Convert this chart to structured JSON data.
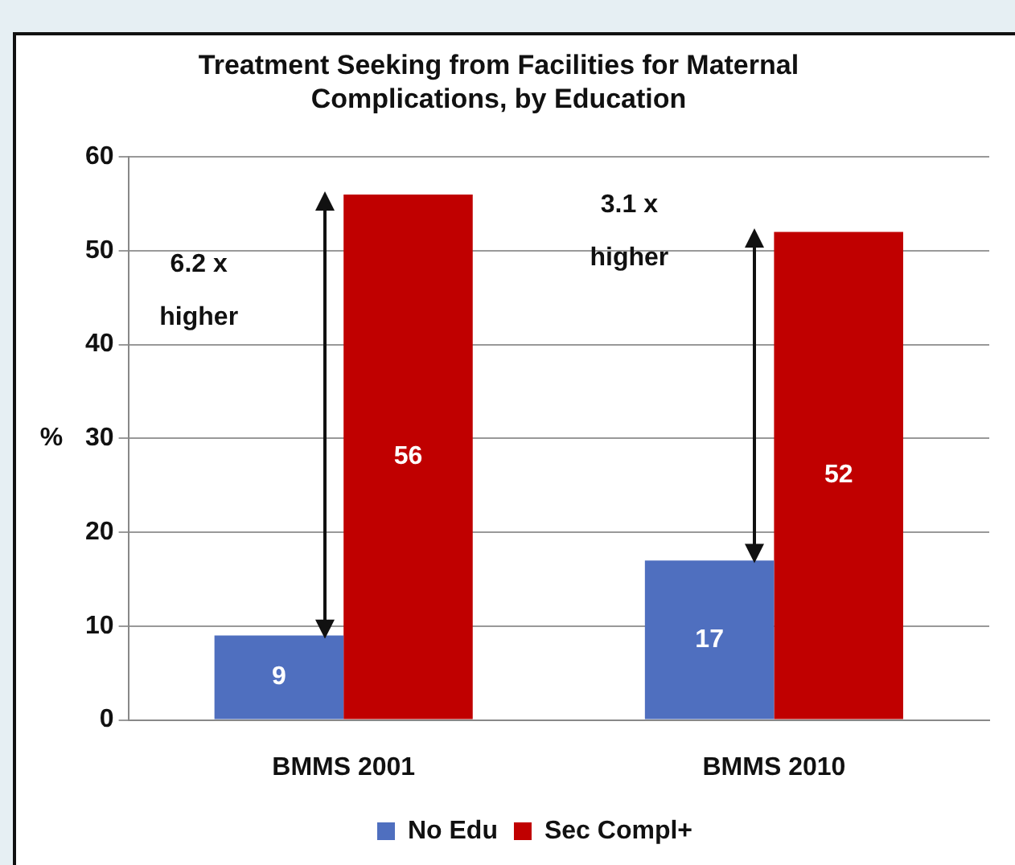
{
  "chart_data": {
    "type": "bar",
    "title": "Treatment Seeking from Facilities for Maternal Complications, by Education",
    "ylabel": "%",
    "categories": [
      "BMMS 2001",
      "BMMS 2010"
    ],
    "series": [
      {
        "name": "No Edu",
        "color": "#4f6fbf",
        "values": [
          9,
          17
        ]
      },
      {
        "name": "Sec Compl+",
        "color": "#c00000",
        "values": [
          56,
          52
        ]
      }
    ],
    "ylim": [
      0,
      60
    ],
    "yticks": [
      0,
      10,
      20,
      30,
      40,
      50,
      60
    ],
    "grid": "y",
    "legend": "bottom",
    "data_labels": true,
    "annotations": [
      "6.2 x\nhigher",
      "3.1 x\nhigher"
    ]
  }
}
